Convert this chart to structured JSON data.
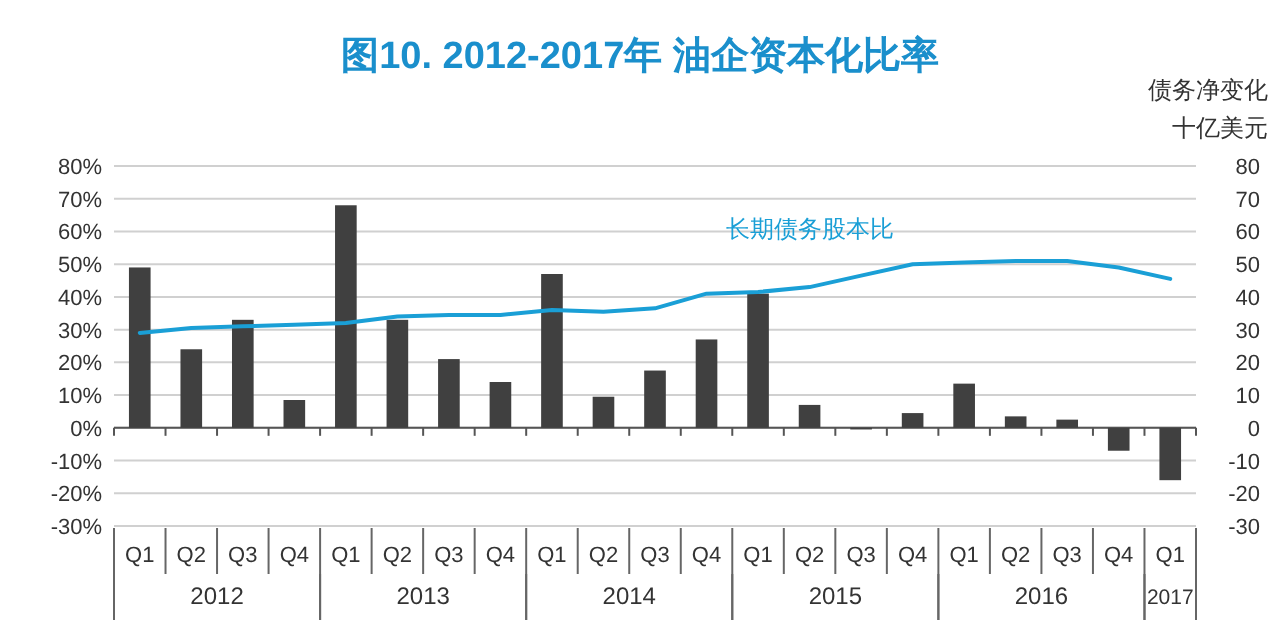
{
  "chart_data": {
    "type": "bar",
    "title": "图10. 2012-2017年 油企资本化比率",
    "categories": [
      "Q1",
      "Q2",
      "Q3",
      "Q4",
      "Q1",
      "Q2",
      "Q3",
      "Q4",
      "Q1",
      "Q2",
      "Q3",
      "Q4",
      "Q1",
      "Q2",
      "Q3",
      "Q4",
      "Q1",
      "Q2",
      "Q3",
      "Q4",
      "Q1"
    ],
    "annotations": [
      "2012",
      "2013",
      "2014",
      "2015",
      "2016",
      "2017"
    ],
    "series": [
      {
        "axis": "y2",
        "color": "#404040",
        "values": [
          49,
          24,
          33,
          8.5,
          68,
          33,
          21,
          14,
          47,
          9.5,
          17.5,
          27,
          41,
          7,
          -0.5,
          4.5,
          13.5,
          3.5,
          2.5,
          -7,
          -16
        ]
      },
      {
        "type": "line",
        "name": "长期债务股本比",
        "color": "#1a9fd6",
        "values": [
          29,
          30.5,
          31,
          31.5,
          32,
          34,
          34.5,
          34.5,
          36,
          35.5,
          36.5,
          41,
          41.5,
          43,
          46.5,
          50,
          50.5,
          51,
          51,
          49,
          45.5
        ]
      }
    ],
    "ylim": [
      -30,
      80
    ],
    "yticks": [
      {
        "value": -30,
        "label": "-30%"
      },
      {
        "value": -20,
        "label": "-20%"
      },
      {
        "value": -10,
        "label": "-10%"
      },
      {
        "value": 0,
        "label": "0%"
      },
      {
        "value": 10,
        "label": "10%"
      },
      {
        "value": 20,
        "label": "20%"
      },
      {
        "value": 30,
        "label": "30%"
      },
      {
        "value": 40,
        "label": "40%"
      },
      {
        "value": 50,
        "label": "50%"
      },
      {
        "value": 60,
        "label": "60%"
      },
      {
        "value": 70,
        "label": "70%"
      },
      {
        "value": 80,
        "label": "80%"
      }
    ],
    "y2label": "债务净变化十亿美元",
    "y2lim": [
      -30,
      80
    ],
    "y2ticks": [
      -30,
      -20,
      -10,
      0,
      10,
      20,
      30,
      40,
      50,
      60,
      70,
      80
    ],
    "grid": "y"
  }
}
